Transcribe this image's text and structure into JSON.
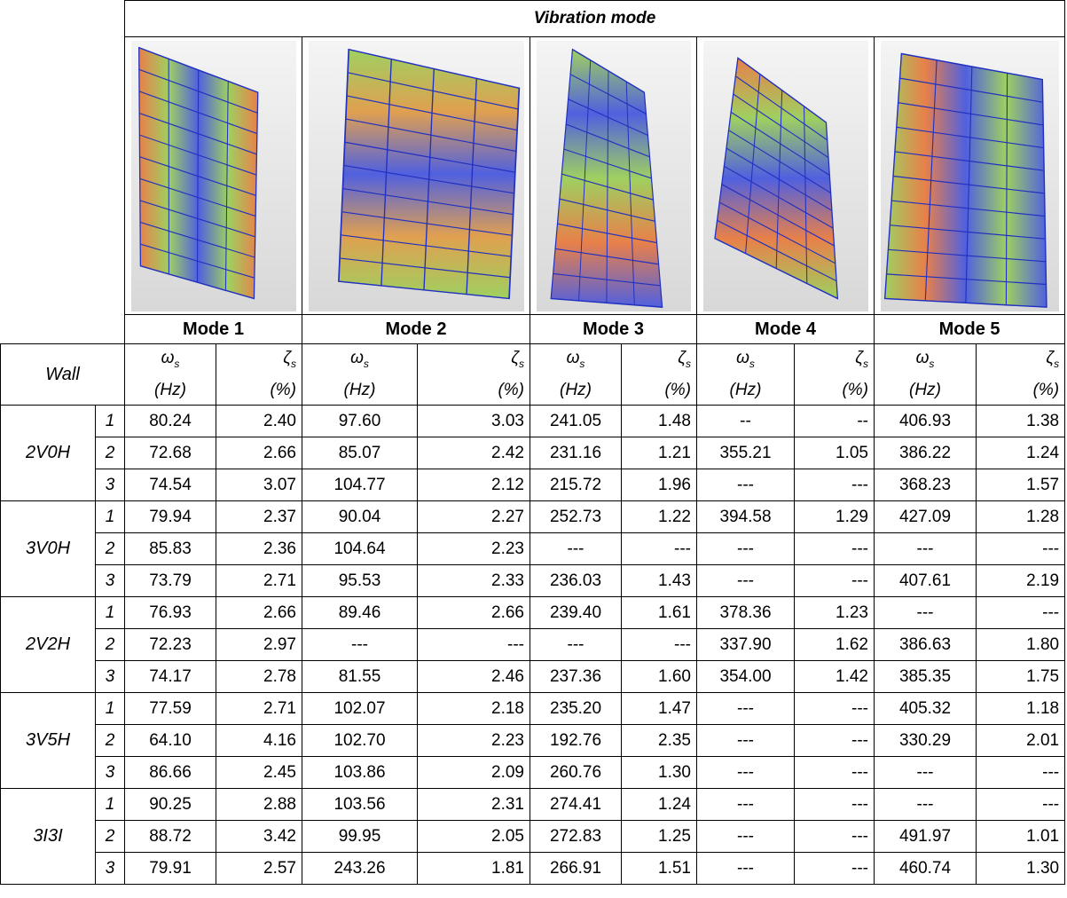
{
  "header": {
    "title": "Vibration mode",
    "modes": [
      "Mode 1",
      "Mode 2",
      "Mode 3",
      "Mode 4",
      "Mode 5"
    ]
  },
  "columns": {
    "wall": "Wall",
    "omega": "ω",
    "zeta": "ζ",
    "sub": "s",
    "omega_unit": "(Hz)",
    "zeta_unit": "(%)"
  },
  "groups": [
    {
      "wall": "2V0H",
      "rows": [
        {
          "index": "1",
          "values": [
            "80.24",
            "2.40",
            "97.60",
            "3.03",
            "241.05",
            "1.48",
            "--",
            "--",
            "406.93",
            "1.38"
          ]
        },
        {
          "index": "2",
          "values": [
            "72.68",
            "2.66",
            "85.07",
            "2.42",
            "231.16",
            "1.21",
            "355.21",
            "1.05",
            "386.22",
            "1.24"
          ]
        },
        {
          "index": "3",
          "values": [
            "74.54",
            "3.07",
            "104.77",
            "2.12",
            "215.72",
            "1.96",
            "---",
            "---",
            "368.23",
            "1.57"
          ]
        }
      ]
    },
    {
      "wall": "3V0H",
      "rows": [
        {
          "index": "1",
          "values": [
            "79.94",
            "2.37",
            "90.04",
            "2.27",
            "252.73",
            "1.22",
            "394.58",
            "1.29",
            "427.09",
            "1.28"
          ]
        },
        {
          "index": "2",
          "values": [
            "85.83",
            "2.36",
            "104.64",
            "2.23",
            "---",
            "---",
            "---",
            "---",
            "---",
            "---"
          ]
        },
        {
          "index": "3",
          "values": [
            "73.79",
            "2.71",
            "95.53",
            "2.33",
            "236.03",
            "1.43",
            "---",
            "---",
            "407.61",
            "2.19"
          ]
        }
      ]
    },
    {
      "wall": "2V2H",
      "rows": [
        {
          "index": "1",
          "values": [
            "76.93",
            "2.66",
            "89.46",
            "2.66",
            "239.40",
            "1.61",
            "378.36",
            "1.23",
            "---",
            "---"
          ]
        },
        {
          "index": "2",
          "values": [
            "72.23",
            "2.97",
            "---",
            "---",
            "---",
            "---",
            "337.90",
            "1.62",
            "386.63",
            "1.80"
          ]
        },
        {
          "index": "3",
          "values": [
            "74.17",
            "2.78",
            "81.55",
            "2.46",
            "237.36",
            "1.60",
            "354.00",
            "1.42",
            "385.35",
            "1.75"
          ]
        }
      ]
    },
    {
      "wall": "3V5H",
      "rows": [
        {
          "index": "1",
          "values": [
            "77.59",
            "2.71",
            "102.07",
            "2.18",
            "235.20",
            "1.47",
            "---",
            "---",
            "405.32",
            "1.18"
          ]
        },
        {
          "index": "2",
          "values": [
            "64.10",
            "4.16",
            "102.70",
            "2.23",
            "192.76",
            "2.35",
            "---",
            "---",
            "330.29",
            "2.01"
          ]
        },
        {
          "index": "3",
          "values": [
            "86.66",
            "2.45",
            "103.86",
            "2.09",
            "260.76",
            "1.30",
            "---",
            "---",
            "---",
            "---"
          ]
        }
      ]
    },
    {
      "wall": "3I3I",
      "rows": [
        {
          "index": "1",
          "values": [
            "90.25",
            "2.88",
            "103.56",
            "2.31",
            "274.41",
            "1.24",
            "---",
            "---",
            "---",
            "---"
          ]
        },
        {
          "index": "2",
          "values": [
            "88.72",
            "3.42",
            "99.95",
            "2.05",
            "272.83",
            "1.25",
            "---",
            "---",
            "491.97",
            "1.01"
          ]
        },
        {
          "index": "3",
          "values": [
            "79.91",
            "2.57",
            "243.26",
            "1.81",
            "266.91",
            "1.51",
            "---",
            "---",
            "460.74",
            "1.30"
          ]
        }
      ]
    }
  ]
}
